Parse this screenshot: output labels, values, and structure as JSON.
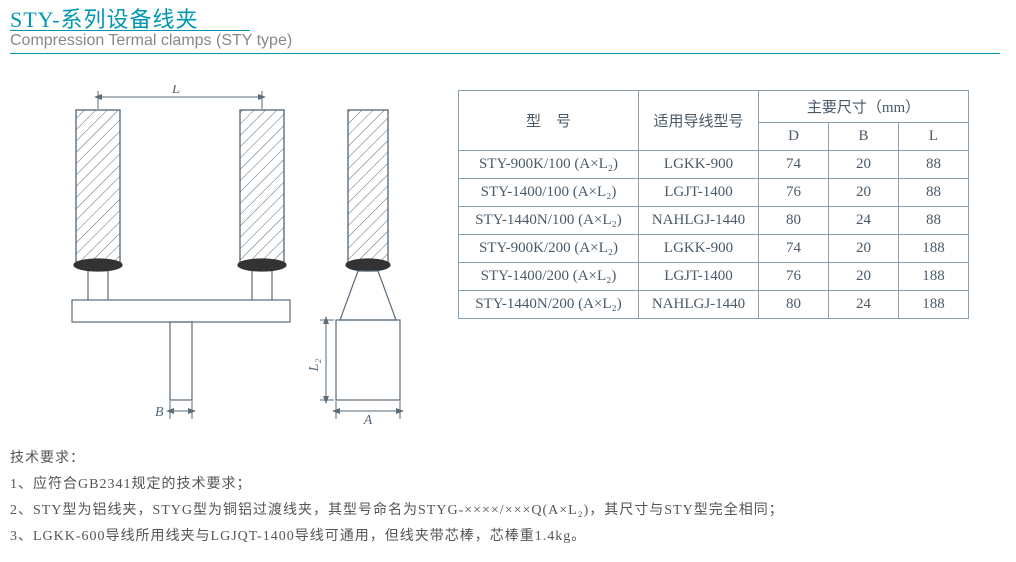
{
  "title": {
    "cn": "STY-系列设备线夹",
    "en": "Compression Termal clamps (STY type)"
  },
  "diagram": {
    "labels": {
      "L": "L",
      "B": "B",
      "A": "A",
      "L2": "L₂"
    },
    "stroke": "#5a6b7a",
    "hatch": "#5a6b7a"
  },
  "table": {
    "headers": {
      "model": "型　号",
      "cable": "适用导线型号",
      "dims": "主要尺寸（mm）",
      "D": "D",
      "B": "B",
      "L": "L"
    },
    "rows": [
      {
        "model": "STY-900K/100 (A×L₂)",
        "cable": "LGKK-900",
        "D": "74",
        "B": "20",
        "L": "88"
      },
      {
        "model": "STY-1400/100 (A×L₂)",
        "cable": "LGJT-1400",
        "D": "76",
        "B": "20",
        "L": "88"
      },
      {
        "model": "STY-1440N/100 (A×L₂)",
        "cable": "NAHLGJ-1440",
        "D": "80",
        "B": "24",
        "L": "88"
      },
      {
        "model": "STY-900K/200 (A×L₂)",
        "cable": "LGKK-900",
        "D": "74",
        "B": "20",
        "L": "188"
      },
      {
        "model": "STY-1400/200 (A×L₂)",
        "cable": "LGJT-1400",
        "D": "76",
        "B": "20",
        "L": "188"
      },
      {
        "model": "STY-1440N/200 (A×L₂)",
        "cable": "NAHLGJ-1440",
        "D": "80",
        "B": "24",
        "L": "188"
      }
    ]
  },
  "notes": {
    "head": "技术要求：",
    "items": [
      "1、应符合GB2341规定的技术要求；",
      "2、STY型为铝线夹，STYG型为铜铝过渡线夹，其型号命名为STYG-××××/×××Q(A×L₂)，其尺寸与STY型完全相同；",
      "3、LGKK-600导线所用线夹与LGJQT-1400导线可通用，但线夹带芯棒，芯棒重1.4kg。"
    ]
  }
}
